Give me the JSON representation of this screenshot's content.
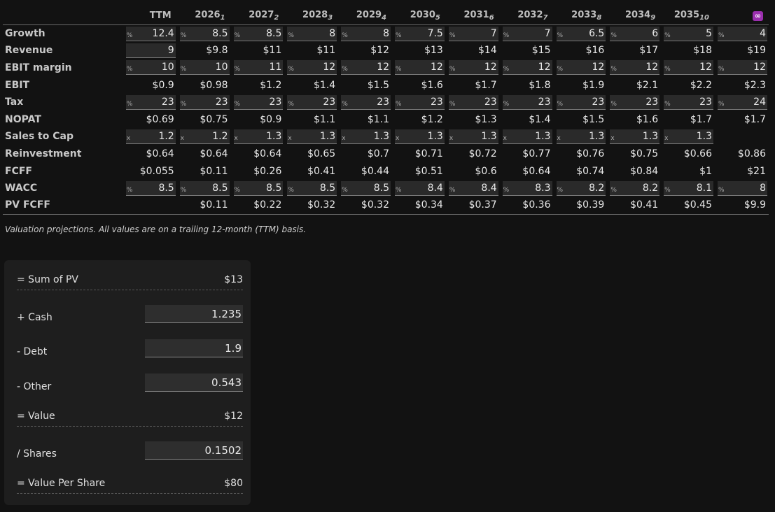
{
  "table": {
    "columns": [
      {
        "label": "TTM",
        "sub": ""
      },
      {
        "label": "2026",
        "sub": "1"
      },
      {
        "label": "2027",
        "sub": "2"
      },
      {
        "label": "2028",
        "sub": "3"
      },
      {
        "label": "2029",
        "sub": "4"
      },
      {
        "label": "2030",
        "sub": "5"
      },
      {
        "label": "2031",
        "sub": "6"
      },
      {
        "label": "2032",
        "sub": "7"
      },
      {
        "label": "2033",
        "sub": "8"
      },
      {
        "label": "2034",
        "sub": "9"
      },
      {
        "label": "2035",
        "sub": "10"
      },
      {
        "label": "∞",
        "sub": "",
        "badge": true
      }
    ],
    "rows": [
      {
        "label": "Growth",
        "unit": "%",
        "input": true,
        "values": [
          "12.4",
          "8.5",
          "8.5",
          "8",
          "8",
          "7.5",
          "7",
          "7",
          "6.5",
          "6",
          "5",
          "4"
        ]
      },
      {
        "label": "Revenue",
        "unit": "",
        "input": true,
        "input_cols": [
          0
        ],
        "values": [
          "9",
          "$9.8",
          "$11",
          "$11",
          "$12",
          "$13",
          "$14",
          "$15",
          "$16",
          "$17",
          "$18",
          "$19"
        ]
      },
      {
        "label": "EBIT margin",
        "unit": "%",
        "input": true,
        "values": [
          "10",
          "10",
          "11",
          "12",
          "12",
          "12",
          "12",
          "12",
          "12",
          "12",
          "12",
          "12"
        ]
      },
      {
        "label": "EBIT",
        "unit": "",
        "input": false,
        "values": [
          "$0.9",
          "$0.98",
          "$1.2",
          "$1.4",
          "$1.5",
          "$1.6",
          "$1.7",
          "$1.8",
          "$1.9",
          "$2.1",
          "$2.2",
          "$2.3"
        ]
      },
      {
        "label": "Tax",
        "unit": "%",
        "input": true,
        "values": [
          "23",
          "23",
          "23",
          "23",
          "23",
          "23",
          "23",
          "23",
          "23",
          "23",
          "23",
          "24"
        ]
      },
      {
        "label": "NOPAT",
        "unit": "",
        "input": false,
        "values": [
          "$0.69",
          "$0.75",
          "$0.9",
          "$1.1",
          "$1.1",
          "$1.2",
          "$1.3",
          "$1.4",
          "$1.5",
          "$1.6",
          "$1.7",
          "$1.7"
        ]
      },
      {
        "label": "Sales to Cap",
        "unit": "x",
        "input": true,
        "input_upto": 10,
        "values": [
          "1.2",
          "1.2",
          "1.3",
          "1.3",
          "1.3",
          "1.3",
          "1.3",
          "1.3",
          "1.3",
          "1.3",
          "1.3",
          ""
        ]
      },
      {
        "label": "Reinvestment",
        "unit": "",
        "input": false,
        "values": [
          "$0.64",
          "$0.64",
          "$0.64",
          "$0.65",
          "$0.7",
          "$0.71",
          "$0.72",
          "$0.77",
          "$0.76",
          "$0.75",
          "$0.66",
          "$0.86"
        ]
      },
      {
        "label": "FCFF",
        "unit": "",
        "input": false,
        "values": [
          "$0.055",
          "$0.11",
          "$0.26",
          "$0.41",
          "$0.44",
          "$0.51",
          "$0.6",
          "$0.64",
          "$0.74",
          "$0.84",
          "$1",
          "$21"
        ]
      },
      {
        "label": "WACC",
        "unit": "%",
        "input": true,
        "values": [
          "8.5",
          "8.5",
          "8.5",
          "8.5",
          "8.5",
          "8.4",
          "8.4",
          "8.3",
          "8.2",
          "8.2",
          "8.1",
          "8"
        ]
      },
      {
        "label": "PV FCFF",
        "unit": "",
        "input": false,
        "values": [
          "",
          "$0.11",
          "$0.22",
          "$0.32",
          "$0.32",
          "$0.34",
          "$0.37",
          "$0.36",
          "$0.39",
          "$0.41",
          "$0.45",
          "$9.9"
        ]
      }
    ]
  },
  "caption": "Valuation projections. All values are on a trailing 12-month (TTM) basis.",
  "valuation": {
    "sum_pv": {
      "label": "= Sum of PV",
      "value": "$13"
    },
    "cash": {
      "label": "+ Cash",
      "value": "1.235"
    },
    "debt": {
      "label": "- Debt",
      "value": "1.9"
    },
    "other": {
      "label": "- Other",
      "value": "0.543"
    },
    "value": {
      "label": "= Value",
      "value": "$12"
    },
    "shares": {
      "label": "/ Shares",
      "value": "0.1502"
    },
    "per_share": {
      "label": "= Value Per Share",
      "value": "$80"
    }
  }
}
